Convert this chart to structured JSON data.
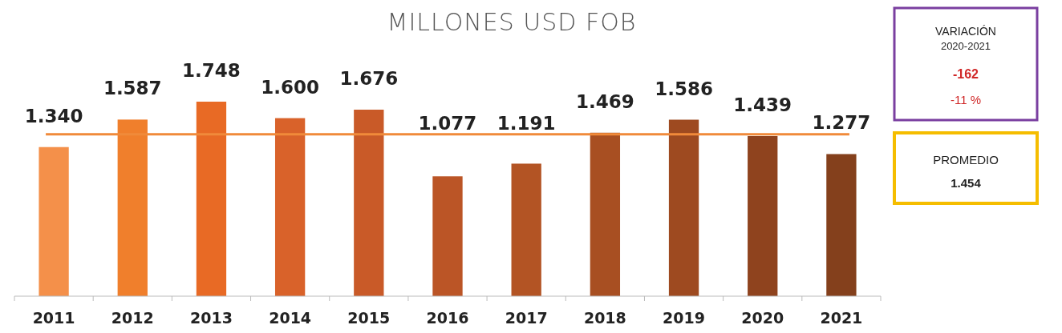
{
  "chart_data": {
    "type": "bar",
    "title": "MILLONES USD FOB",
    "categories": [
      "2011",
      "2012",
      "2013",
      "2014",
      "2015",
      "2016",
      "2017",
      "2018",
      "2019",
      "2020",
      "2021"
    ],
    "values": [
      1340,
      1587,
      1748,
      1600,
      1676,
      1077,
      1191,
      1469,
      1586,
      1439,
      1277
    ],
    "value_labels": [
      "1.340",
      "1.587",
      "1.748",
      "1.600",
      "1.676",
      "1.077",
      "1.191",
      "1.469",
      "1.586",
      "1.439",
      "1.277"
    ],
    "colors": [
      "#f4904a",
      "#f07f2c",
      "#e86a25",
      "#d9622a",
      "#c95a28",
      "#bb5526",
      "#b35424",
      "#a84f22",
      "#9e4a20",
      "#8f431e",
      "#84401c"
    ],
    "ref_lines": [
      {
        "axis": "y",
        "value": 1454,
        "label": null,
        "color": "#f08a3a"
      }
    ],
    "annotations": [
      "VARIACIÓN",
      "2020-2021",
      "-162",
      "-11 %",
      "PROMEDIO",
      "1.454"
    ]
  }
}
